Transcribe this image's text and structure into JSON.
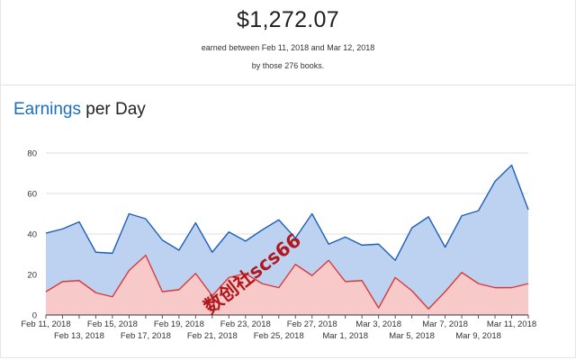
{
  "summary": {
    "total": "$1,272.07",
    "range_text": "earned between Feb 11, 2018 and Mar 12, 2018",
    "books_text": "by those 276 books."
  },
  "chart": {
    "title_accent": "Earnings",
    "title_rest": " per Day"
  },
  "watermark": "数创社scs66",
  "colors": {
    "line_total": "#1f5fb8",
    "fill_total": "#bcd2f0",
    "line_sub": "#d83a3a",
    "fill_sub": "#f8c9c9"
  },
  "chart_data": {
    "type": "area",
    "title": "Earnings per Day",
    "x": [
      "Feb 11, 2018",
      "Feb 12, 2018",
      "Feb 13, 2018",
      "Feb 14, 2018",
      "Feb 15, 2018",
      "Feb 16, 2018",
      "Feb 17, 2018",
      "Feb 18, 2018",
      "Feb 19, 2018",
      "Feb 20, 2018",
      "Feb 21, 2018",
      "Feb 22, 2018",
      "Feb 23, 2018",
      "Feb 24, 2018",
      "Feb 25, 2018",
      "Feb 26, 2018",
      "Feb 27, 2018",
      "Feb 28, 2018",
      "Mar 1, 2018",
      "Mar 2, 2018",
      "Mar 3, 2018",
      "Mar 4, 2018",
      "Mar 5, 2018",
      "Mar 6, 2018",
      "Mar 7, 2018",
      "Mar 8, 2018",
      "Mar 9, 2018",
      "Mar 10, 2018",
      "Mar 11, 2018",
      "Mar 12, 2018"
    ],
    "x_tick_labels_top": [
      "Feb 11, 2018",
      "Feb 15, 2018",
      "Feb 19, 2018",
      "Feb 23, 2018",
      "Feb 27, 2018",
      "Mar 3, 2018",
      "Mar 7, 2018",
      "Mar 11, 2018"
    ],
    "x_tick_labels_bottom": [
      "Feb 13, 2018",
      "Feb 17, 2018",
      "Feb 21, 2018",
      "Feb 25, 2018",
      "Mar 1, 2018",
      "Mar 5, 2018",
      "Mar 9, 2018"
    ],
    "y_ticks": [
      0,
      20,
      40,
      60,
      80
    ],
    "ylim": [
      0,
      80
    ],
    "grid": true,
    "series": [
      {
        "values": [
          40.4,
          42.5,
          46,
          31,
          30.5,
          50,
          47.5,
          37,
          32,
          45.5,
          31,
          41,
          36.5,
          42,
          47,
          38,
          50,
          35,
          38.5,
          34.5,
          35,
          27,
          43,
          48.5,
          33.5,
          49,
          51.5,
          66,
          74,
          52
        ]
      },
      {
        "values": [
          11.5,
          16.5,
          17,
          11,
          9,
          22,
          29.5,
          11.5,
          12.5,
          20.5,
          9.5,
          18.5,
          20.5,
          15.5,
          13.5,
          25,
          19.5,
          27,
          16.5,
          17,
          3.5,
          18.5,
          12,
          3,
          11.5,
          21,
          15.5,
          13.5,
          13.5,
          15.5
        ]
      }
    ]
  }
}
